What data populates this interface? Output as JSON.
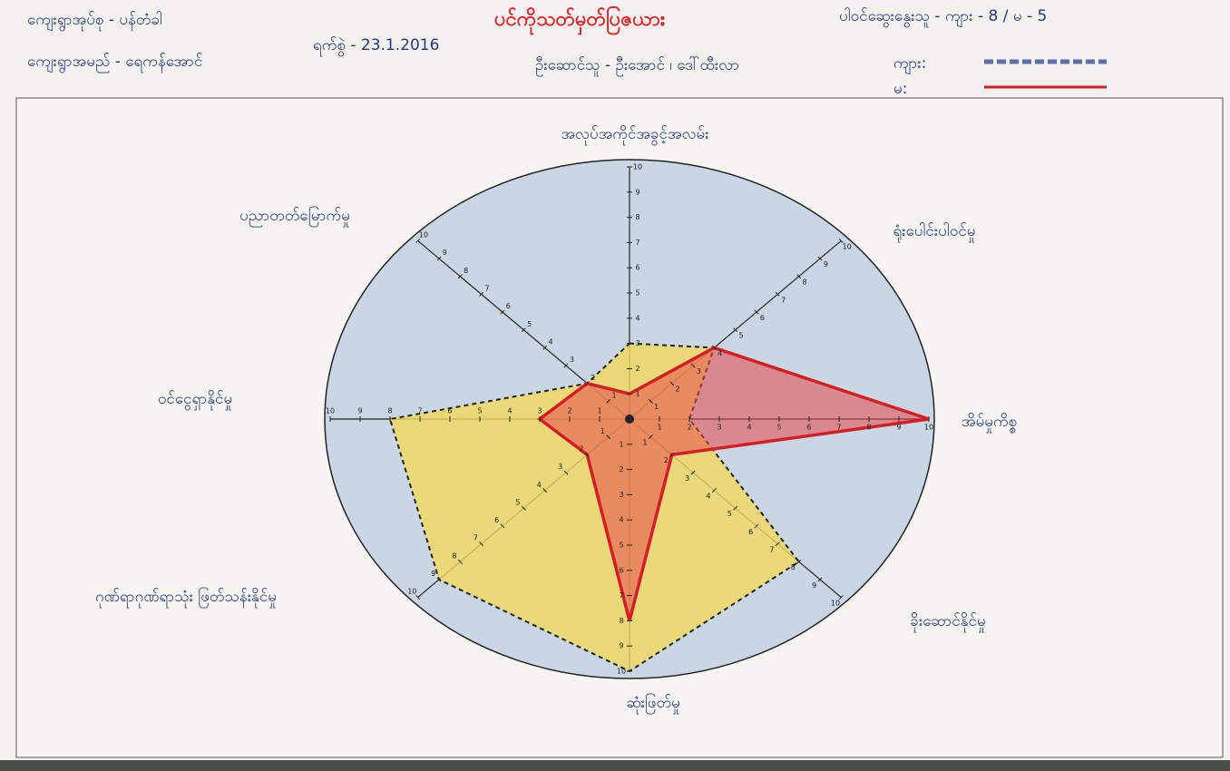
{
  "header": {
    "village_tract": "ကျေးရွာအုပ်စု - ပန်တံခါ",
    "village": "ကျေးရွာအမည် - ရေကန်အောင်",
    "date": "ရက်စွဲ - 23.1.2016",
    "participants": "ပါဝင်ဆွေးနွေးသူ - ကျား - 8 / မ - 5",
    "facilitators": "ဦးဆောင်သူ - ဦးအောင် ၊ ဒေါ်ထီးလာ"
  },
  "chart_data": {
    "type": "radar",
    "title": "ပင်ကိုသတ်မှတ်ပြဇယား",
    "categories": [
      "အလုပ်အကိုင်အခွင့်အလမ်း",
      "ရုံးပေါင်းပါဝင်မှု",
      "အိမ်မှုကိစ္စ",
      "ခိုးဆောင်နိုင်မှု",
      "ဆုံးဖြတ်မှု",
      "ဂုဏ်ရာဂုဏ်ရာသုံး ဖြတ်သန်းနိုင်မှု",
      "ဝင်ငွေရှာနိုင်မှု",
      "ပညာတတ်မြောက်မှု"
    ],
    "series": [
      {
        "name": "ကျား:",
        "color": "#f2d95c",
        "edge_color": "#222222",
        "line_style": "dashed",
        "values": [
          3,
          4,
          2,
          8,
          10,
          9,
          8,
          2
        ]
      },
      {
        "name": "မ:",
        "color": "#e8484a",
        "edge_color": "#d41e26",
        "line_style": "solid",
        "values": [
          1,
          4,
          10,
          2,
          8,
          2,
          3,
          2
        ]
      }
    ],
    "rlim": [
      0,
      10
    ],
    "rticks": [
      1,
      2,
      3,
      4,
      5,
      6,
      7,
      8,
      9,
      10
    ]
  }
}
